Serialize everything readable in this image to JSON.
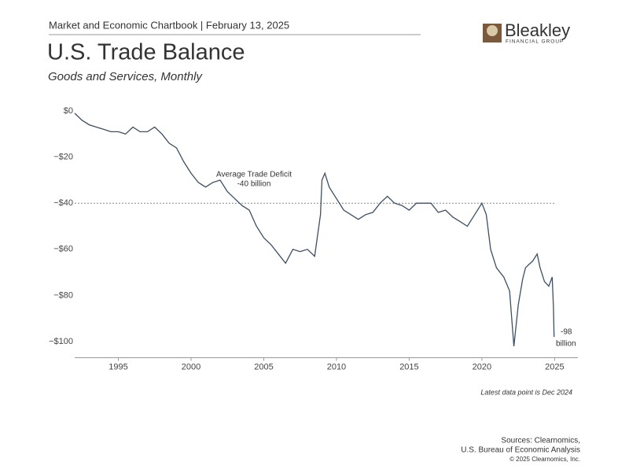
{
  "header": "Market and Economic Chartbook | February 13, 2025",
  "logo": {
    "name": "Bleakley",
    "tagline": "FINANCIAL GROUP"
  },
  "chart_data": {
    "type": "line",
    "title": "U.S. Trade Balance",
    "subtitle": "Goods and Services, Monthly",
    "x": [
      1992.0,
      1992.5,
      1993.0,
      1993.5,
      1994.0,
      1994.5,
      1995.0,
      1995.5,
      1996.0,
      1996.5,
      1997.0,
      1997.5,
      1998.0,
      1998.5,
      1999.0,
      1999.5,
      2000.0,
      2000.5,
      2001.0,
      2001.5,
      2002.0,
      2002.5,
      2003.0,
      2003.5,
      2004.0,
      2004.5,
      2005.0,
      2005.5,
      2006.0,
      2006.5,
      2007.0,
      2007.5,
      2008.0,
      2008.5,
      2008.9,
      2009.0,
      2009.2,
      2009.5,
      2010.0,
      2010.5,
      2011.0,
      2011.5,
      2012.0,
      2012.5,
      2013.0,
      2013.5,
      2014.0,
      2014.5,
      2015.0,
      2015.5,
      2016.0,
      2016.5,
      2017.0,
      2017.5,
      2018.0,
      2018.5,
      2019.0,
      2019.5,
      2020.0,
      2020.3,
      2020.6,
      2021.0,
      2021.5,
      2021.9,
      2022.2,
      2022.5,
      2022.8,
      2023.0,
      2023.5,
      2023.8,
      2024.0,
      2024.3,
      2024.6,
      2024.83,
      2024.92,
      2024.96
    ],
    "series": [
      {
        "name": "U.S. Trade Balance",
        "color": "#3d4f63",
        "values": [
          -1,
          -4,
          -6,
          -7,
          -8,
          -9,
          -9,
          -10,
          -7,
          -9,
          -9,
          -7,
          -10,
          -14,
          -16,
          -22,
          -27,
          -31,
          -33,
          -31,
          -30,
          -35,
          -38,
          -41,
          -43,
          -50,
          -55,
          -58,
          -62,
          -66,
          -60,
          -61,
          -60,
          -63,
          -45,
          -30,
          -27,
          -33,
          -38,
          -43,
          -45,
          -47,
          -45,
          -44,
          -40,
          -37,
          -40,
          -41,
          -43,
          -40,
          -40,
          -40,
          -44,
          -43,
          -46,
          -48,
          -50,
          -45,
          -40,
          -45,
          -60,
          -68,
          -72,
          -78,
          -102,
          -84,
          -73,
          -68,
          -65,
          -62,
          -68,
          -74,
          -76,
          -72,
          -85,
          -98
        ]
      }
    ],
    "xlim": [
      1992,
      2026.6
    ],
    "ylim": [
      -107,
      0
    ],
    "xticks": [
      1995,
      2000,
      2005,
      2010,
      2015,
      2020,
      2025
    ],
    "yticks": [
      {
        "value": 0,
        "label": "$0"
      },
      {
        "value": -20,
        "label": "−$20"
      },
      {
        "value": -40,
        "label": "−$40"
      },
      {
        "value": -60,
        "label": "−$60"
      },
      {
        "value": -80,
        "label": "−$80"
      },
      {
        "value": -100,
        "label": "−$100"
      }
    ],
    "average": {
      "value": -40,
      "label": [
        "Average Trade Deficit",
        "-40 billion"
      ]
    },
    "end_label": [
      "-98",
      "billion"
    ],
    "note": "Latest data point is Dec 2024",
    "sources": [
      "Sources: Clearnomics,",
      "U.S. Bureau of Economic Analysis"
    ],
    "copyright": "© 2025 Clearnomics, Inc."
  }
}
